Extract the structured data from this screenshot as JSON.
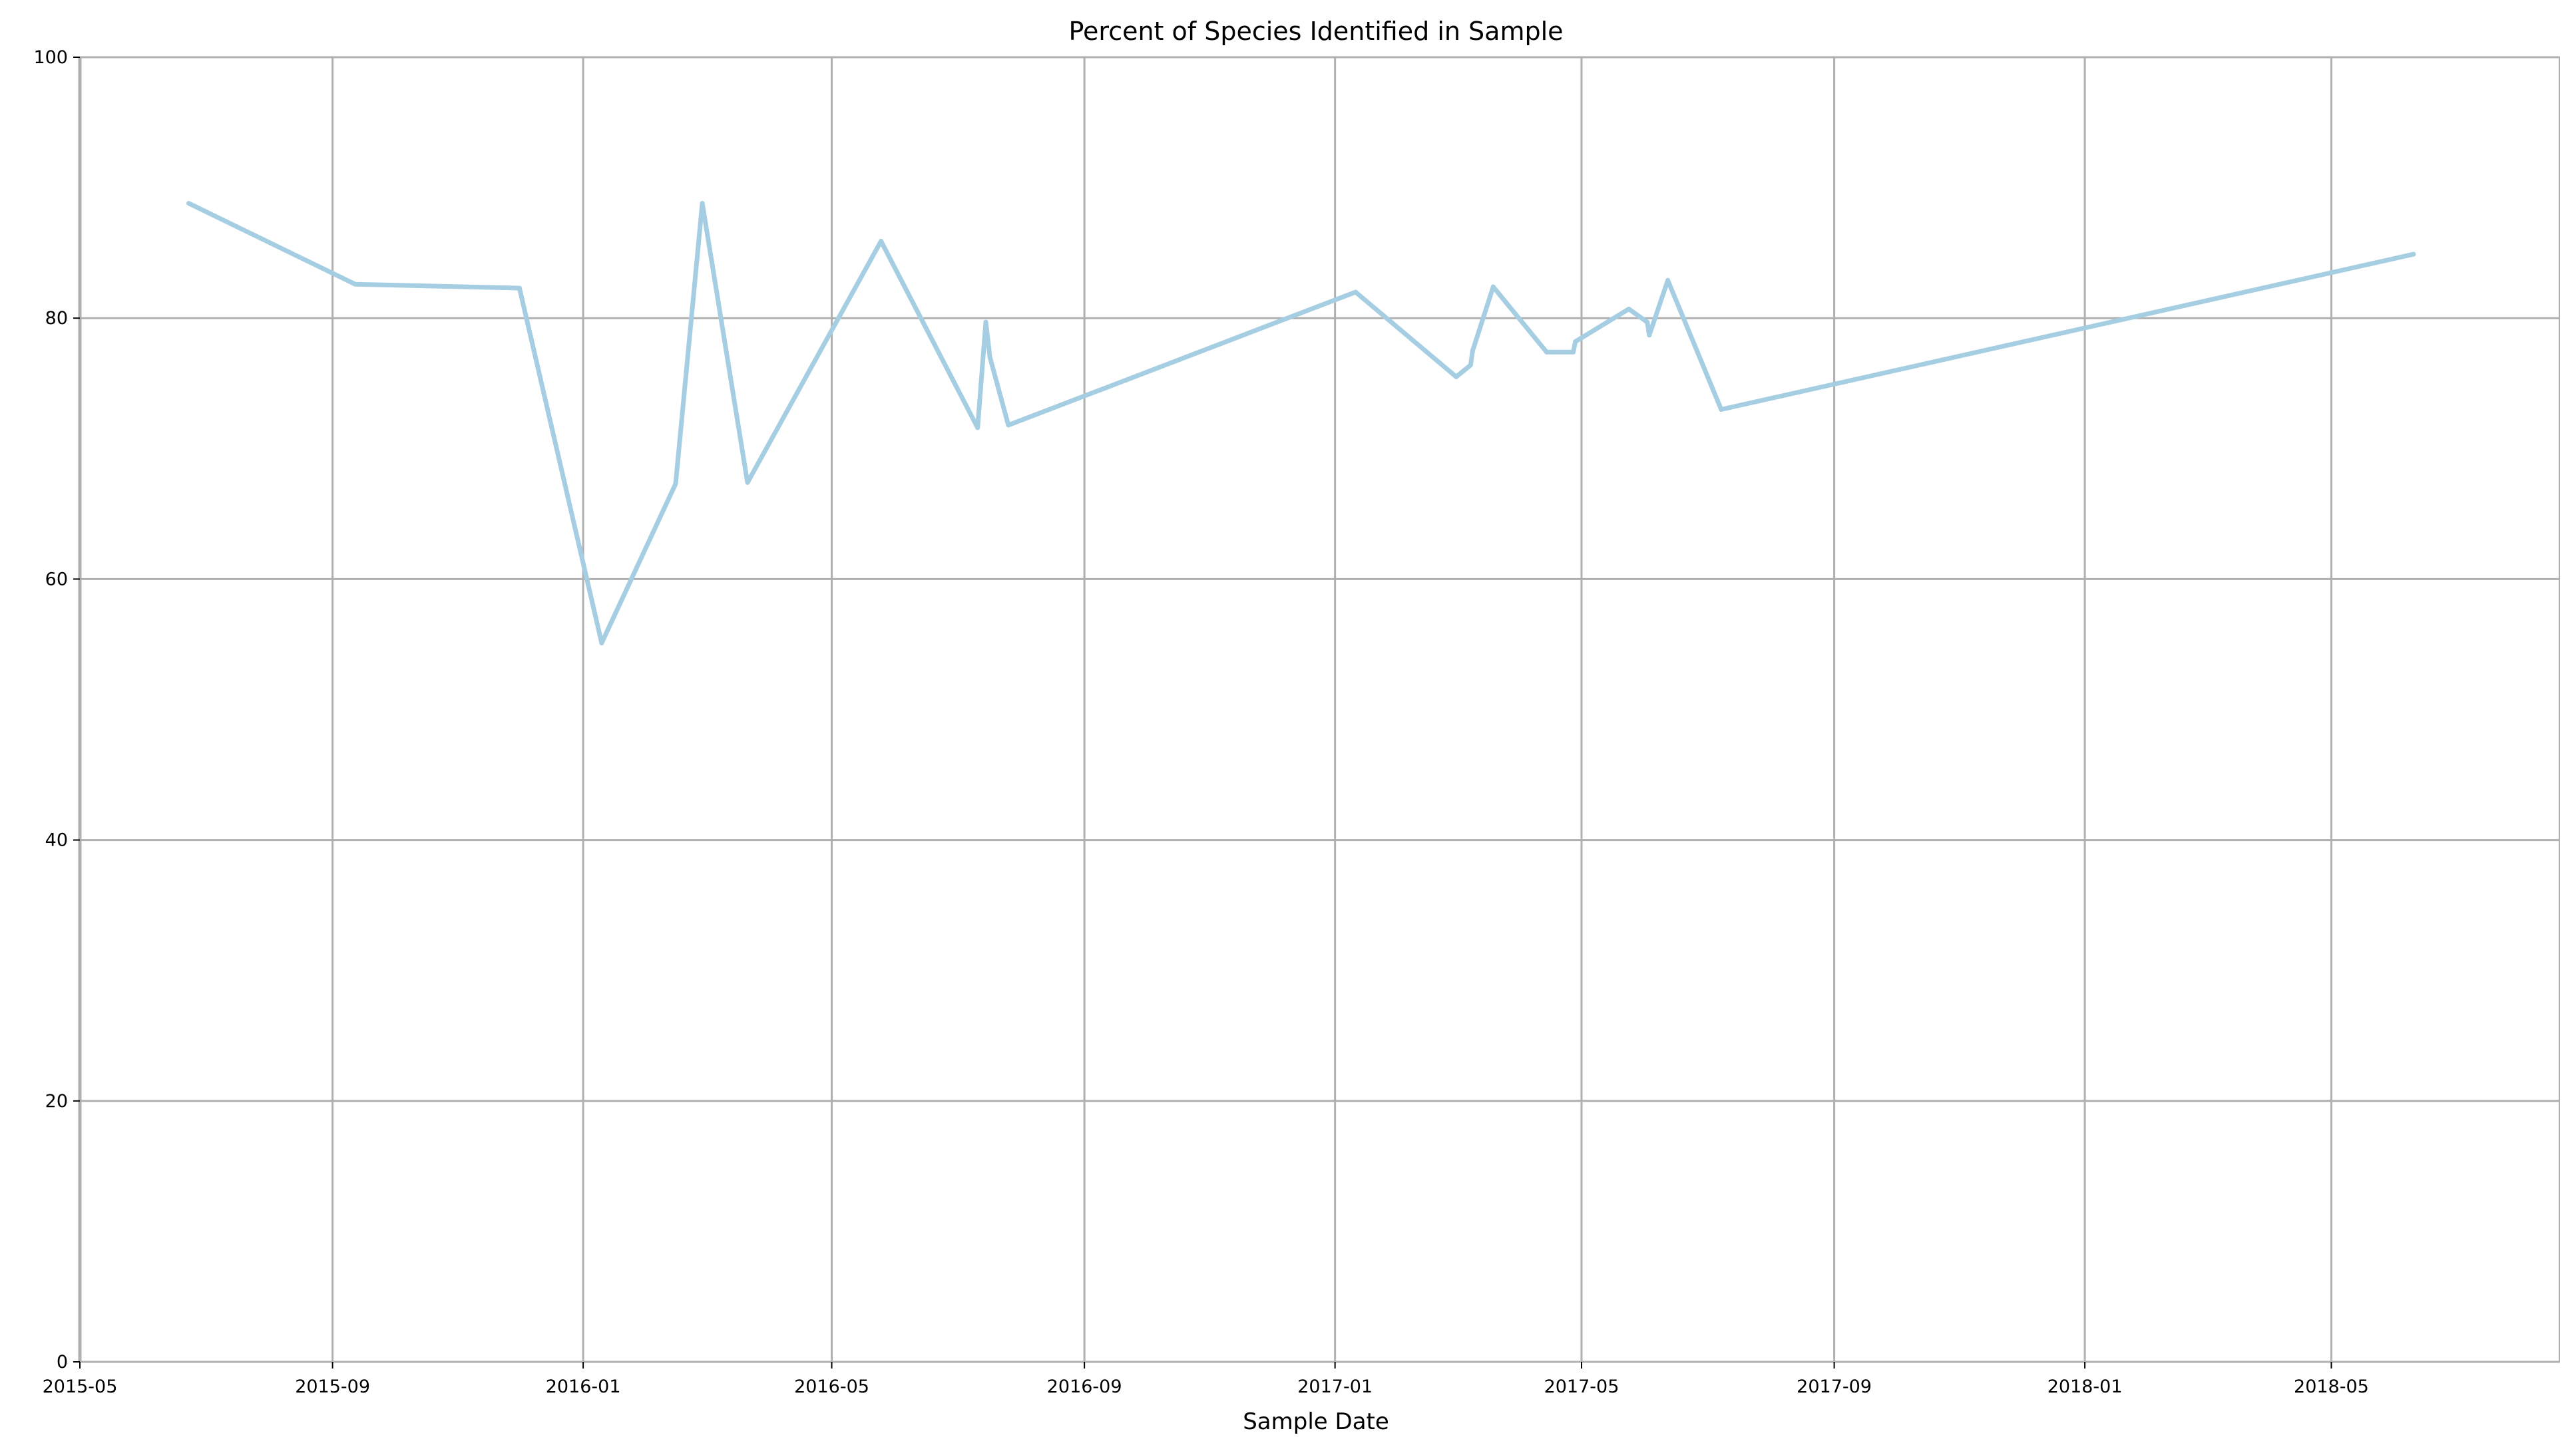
{
  "chart_data": {
    "type": "line",
    "title": "Percent of Species Identified in Sample",
    "xlabel": "Sample Date",
    "ylabel": "",
    "x_axis_type": "date",
    "xlim": [
      "2015-05-01",
      "2018-08-20"
    ],
    "ylim": [
      0,
      100
    ],
    "grid": true,
    "legend": "none",
    "x_ticks": [
      {
        "date": "2015-05-01",
        "label": "2015-05"
      },
      {
        "date": "2015-09-01",
        "label": "2015-09"
      },
      {
        "date": "2016-01-01",
        "label": "2016-01"
      },
      {
        "date": "2016-05-01",
        "label": "2016-05"
      },
      {
        "date": "2016-09-01",
        "label": "2016-09"
      },
      {
        "date": "2017-01-01",
        "label": "2017-01"
      },
      {
        "date": "2017-05-01",
        "label": "2017-05"
      },
      {
        "date": "2017-09-01",
        "label": "2017-09"
      },
      {
        "date": "2018-01-01",
        "label": "2018-01"
      },
      {
        "date": "2018-05-01",
        "label": "2018-05"
      }
    ],
    "y_ticks": [
      {
        "value": 0,
        "label": "0"
      },
      {
        "value": 20,
        "label": "20"
      },
      {
        "value": 40,
        "label": "40"
      },
      {
        "value": 60,
        "label": "60"
      },
      {
        "value": 80,
        "label": "80"
      },
      {
        "value": 100,
        "label": "100"
      }
    ],
    "series": [
      {
        "color": "#a6cee3",
        "points": [
          {
            "x": "2015-06-23",
            "y": 88.8
          },
          {
            "x": "2015-09-12",
            "y": 82.6
          },
          {
            "x": "2015-12-01",
            "y": 82.3
          },
          {
            "x": "2016-01-10",
            "y": 55.1
          },
          {
            "x": "2016-02-15",
            "y": 67.3
          },
          {
            "x": "2016-02-28",
            "y": 88.8
          },
          {
            "x": "2016-03-21",
            "y": 67.4
          },
          {
            "x": "2016-05-25",
            "y": 85.9
          },
          {
            "x": "2016-07-11",
            "y": 71.6
          },
          {
            "x": "2016-07-15",
            "y": 79.7
          },
          {
            "x": "2016-07-17",
            "y": 77.0
          },
          {
            "x": "2016-07-26",
            "y": 71.8
          },
          {
            "x": "2017-01-11",
            "y": 82.0
          },
          {
            "x": "2017-03-01",
            "y": 75.5
          },
          {
            "x": "2017-03-08",
            "y": 76.4
          },
          {
            "x": "2017-03-09",
            "y": 77.5
          },
          {
            "x": "2017-03-19",
            "y": 82.4
          },
          {
            "x": "2017-04-14",
            "y": 77.4
          },
          {
            "x": "2017-04-27",
            "y": 77.4
          },
          {
            "x": "2017-04-28",
            "y": 78.2
          },
          {
            "x": "2017-05-24",
            "y": 80.7
          },
          {
            "x": "2017-06-02",
            "y": 79.7
          },
          {
            "x": "2017-06-03",
            "y": 78.7
          },
          {
            "x": "2017-06-12",
            "y": 82.9
          },
          {
            "x": "2017-07-08",
            "y": 73.0
          },
          {
            "x": "2018-06-10",
            "y": 84.9
          }
        ]
      }
    ]
  }
}
